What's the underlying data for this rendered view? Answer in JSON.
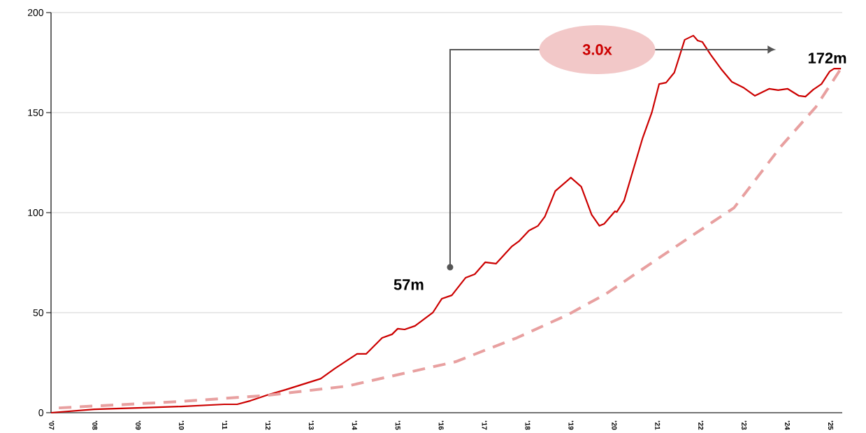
{
  "chart_data": {
    "type": "line",
    "xlim": [
      2007,
      2025.28
    ],
    "ylim": [
      0,
      200
    ],
    "xticks": [
      {
        "value": 2007,
        "label": "'07"
      },
      {
        "value": 2008,
        "label": "'08"
      },
      {
        "value": 2009,
        "label": "'09"
      },
      {
        "value": 2010,
        "label": "'10"
      },
      {
        "value": 2011,
        "label": "'11"
      },
      {
        "value": 2012,
        "label": "'12"
      },
      {
        "value": 2013,
        "label": "'13"
      },
      {
        "value": 2014,
        "label": "'14"
      },
      {
        "value": 2015,
        "label": "'15"
      },
      {
        "value": 2016,
        "label": "'16"
      },
      {
        "value": 2017,
        "label": "'17"
      },
      {
        "value": 2018,
        "label": "'18"
      },
      {
        "value": 2019,
        "label": "'19"
      },
      {
        "value": 2020,
        "label": "'20"
      },
      {
        "value": 2021,
        "label": "'21"
      },
      {
        "value": 2022,
        "label": "'22"
      },
      {
        "value": 2023,
        "label": "'23"
      },
      {
        "value": 2024,
        "label": "'24"
      },
      {
        "value": 2025,
        "label": "'25"
      }
    ],
    "yticks": [
      0,
      50,
      100,
      150,
      200
    ],
    "grid": "y",
    "marker": "none",
    "series": [
      {
        "color": "#cc0000",
        "line_style": "solid",
        "x": [
          2007.0,
          2008.0,
          2009.0,
          2010.0,
          2011.0,
          2011.3,
          2011.61,
          2012.02,
          2012.42,
          2012.83,
          2013.23,
          2013.55,
          2014.07,
          2014.28,
          2014.65,
          2014.88,
          2015.01,
          2015.17,
          2015.41,
          2015.82,
          2016.03,
          2016.26,
          2016.58,
          2016.79,
          2017.03,
          2017.28,
          2017.65,
          2017.81,
          2018.04,
          2018.25,
          2018.41,
          2018.65,
          2019.01,
          2019.25,
          2019.49,
          2019.67,
          2019.78,
          2020.03,
          2020.07,
          2020.24,
          2020.67,
          2020.88,
          2021.05,
          2021.21,
          2021.4,
          2021.64,
          2021.84,
          2021.94,
          2022.05,
          2022.24,
          2022.5,
          2022.73,
          2022.99,
          2023.26,
          2023.59,
          2023.8,
          2024.02,
          2024.28,
          2024.43,
          2024.61,
          2024.8,
          2024.99,
          2025.09,
          2025.25
        ],
        "values": [
          0,
          1.7,
          2.4,
          3.1,
          4.2,
          4.2,
          6,
          9,
          11.5,
          14.3,
          17,
          22,
          29.4,
          29.4,
          37.4,
          39.2,
          42,
          41.6,
          43.4,
          50,
          57,
          58.7,
          67.5,
          69.2,
          75.2,
          74.5,
          83.2,
          85.7,
          91,
          93.4,
          98,
          110.8,
          117.5,
          113,
          99,
          93.4,
          94.4,
          100.7,
          100.3,
          106,
          137.4,
          150,
          164.3,
          165,
          170,
          186.4,
          188.5,
          186,
          185.3,
          179,
          171.3,
          165.4,
          162.6,
          158.4,
          161.9,
          161.2,
          161.9,
          158.4,
          158,
          161.5,
          164.3,
          170.6,
          172,
          172
        ]
      },
      {
        "color": "#e8a0a0",
        "line_style": "dashed",
        "x": [
          2007.18,
          2010.0,
          2012.0,
          2013.84,
          2016.35,
          2017.76,
          2018.94,
          2019.82,
          2021.81,
          2022.78,
          2023.86,
          2024.67,
          2025.25
        ],
        "values": [
          2.4,
          5.6,
          8.7,
          13.3,
          25.5,
          37.4,
          49,
          59.4,
          88.5,
          102.4,
          133,
          152.8,
          172
        ]
      }
    ],
    "annotations": [
      {
        "text": "57m",
        "x": 2016,
        "y": 57
      },
      "3.0x",
      {
        "text": "172m",
        "x": 2025.25,
        "y": 172
      }
    ]
  }
}
